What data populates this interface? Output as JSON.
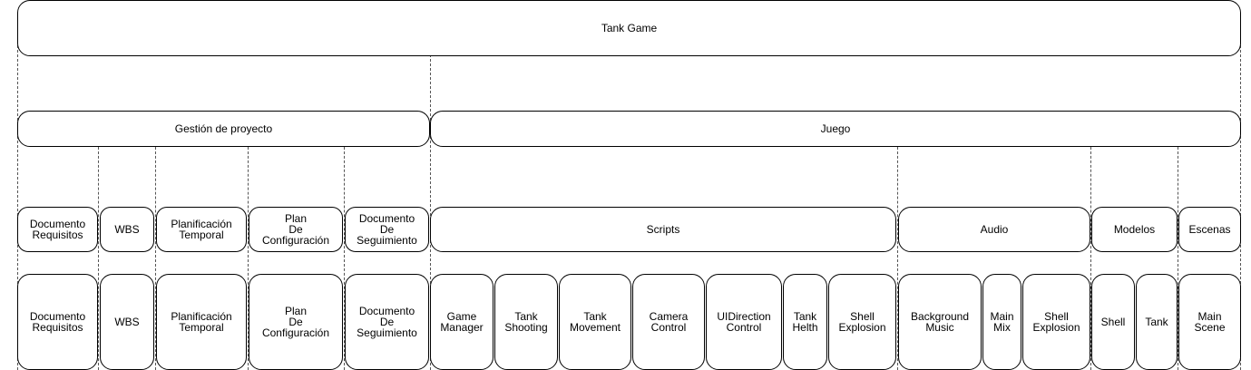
{
  "root": {
    "label": "Tank Game"
  },
  "groups": [
    {
      "id": "gestion",
      "label": "Gestión de proyecto"
    },
    {
      "id": "juego",
      "label": "Juego"
    }
  ],
  "subgroups": [
    {
      "id": "doc-req",
      "label": "Documento\nRequisitos"
    },
    {
      "id": "wbs",
      "label": "WBS"
    },
    {
      "id": "plan-temp",
      "label": "Planificación\nTemporal"
    },
    {
      "id": "plan-conf",
      "label": "Plan\nDe\nConfiguración"
    },
    {
      "id": "doc-seg",
      "label": "Documento\nDe\nSeguimiento"
    },
    {
      "id": "scripts",
      "label": "Scripts"
    },
    {
      "id": "audio",
      "label": "Audio"
    },
    {
      "id": "modelos",
      "label": "Modelos"
    },
    {
      "id": "escenas",
      "label": "Escenas"
    }
  ],
  "leaves": [
    {
      "id": "doc-req",
      "label": "Documento\nRequisitos"
    },
    {
      "id": "wbs",
      "label": "WBS"
    },
    {
      "id": "plan-temp",
      "label": "Planificación\nTemporal"
    },
    {
      "id": "plan-conf",
      "label": "Plan\nDe\nConfiguración"
    },
    {
      "id": "doc-seg",
      "label": "Documento\nDe\nSeguimiento"
    },
    {
      "id": "game-manager",
      "label": "Game\nManager"
    },
    {
      "id": "tank-shooting",
      "label": "Tank\nShooting"
    },
    {
      "id": "tank-movement",
      "label": "Tank\nMovement"
    },
    {
      "id": "camera-control",
      "label": "Camera\nControl"
    },
    {
      "id": "uidirection-control",
      "label": "UIDirection\nControl"
    },
    {
      "id": "tank-helth",
      "label": "Tank\nHelth"
    },
    {
      "id": "shell-explosion-script",
      "label": "Shell\nExplosion"
    },
    {
      "id": "background-music",
      "label": "Background\nMusic"
    },
    {
      "id": "main-mix",
      "label": "Main\nMix"
    },
    {
      "id": "shell-explosion-audio",
      "label": "Shell\nExplosion"
    },
    {
      "id": "shell-model",
      "label": "Shell"
    },
    {
      "id": "tank-model",
      "label": "Tank"
    },
    {
      "id": "main-scene",
      "label": "Main\nScene"
    }
  ]
}
